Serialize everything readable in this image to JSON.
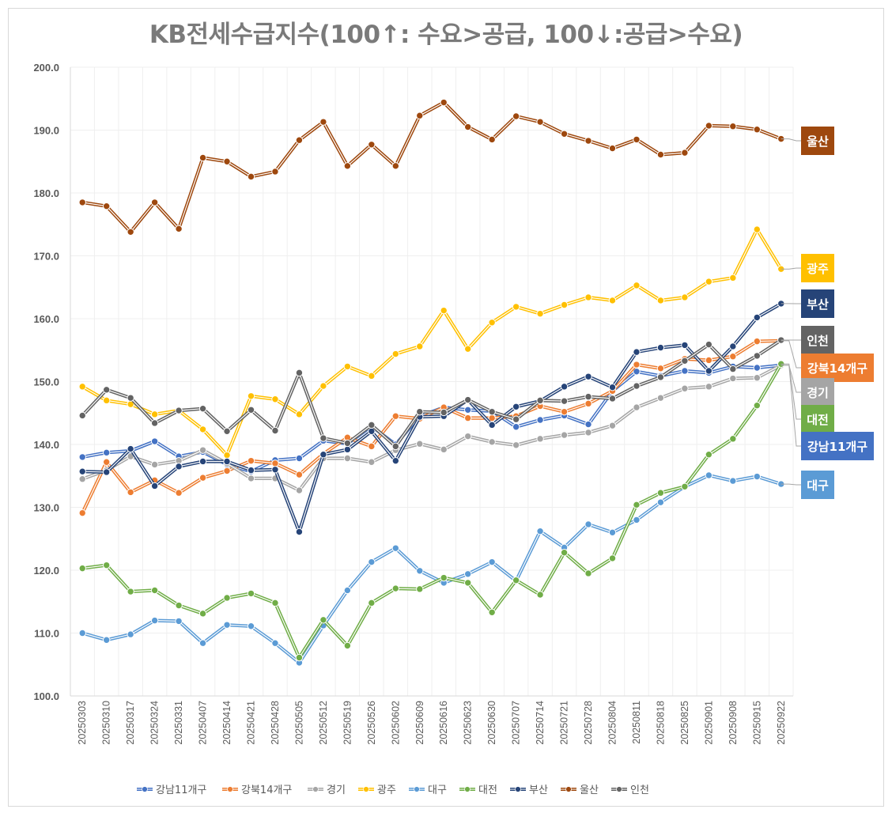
{
  "chart_data": {
    "type": "line",
    "title": "KB전세수급지수(100↑: 수요>공급, 100↓:공급>수요)",
    "xlabel": "",
    "ylabel": "",
    "ylim": [
      100,
      200
    ],
    "yticks": [
      "100.0",
      "110.0",
      "120.0",
      "130.0",
      "140.0",
      "150.0",
      "160.0",
      "170.0",
      "180.0",
      "190.0",
      "200.0"
    ],
    "grid": true,
    "legend_position": "bottom",
    "x": [
      "20250303",
      "20250310",
      "20250317",
      "20250324",
      "20250331",
      "20250407",
      "20250414",
      "20250421",
      "20250428",
      "20250505",
      "20250512",
      "20250519",
      "20250526",
      "20250602",
      "20250609",
      "20250616",
      "20250623",
      "20250630",
      "20250707",
      "20250714",
      "20250721",
      "20250728",
      "20250804",
      "20250811",
      "20250818",
      "20250825",
      "20250901",
      "20250908",
      "20250915",
      "20250922"
    ],
    "series": [
      {
        "name": "강남11개구",
        "color": "#4472C4",
        "values": [
          138.0,
          138.7,
          139.0,
          140.5,
          138.1,
          138.8,
          136.8,
          135.7,
          137.5,
          137.8,
          140.6,
          140.1,
          142.9,
          140.0,
          144.5,
          145.9,
          145.5,
          145.3,
          142.8,
          143.9,
          144.6,
          143.2,
          148.5,
          151.6,
          150.9,
          151.7,
          151.4,
          152.4,
          152.2,
          152.6
        ]
      },
      {
        "name": "강북14개구",
        "color": "#ED7D31",
        "values": [
          129.1,
          137.2,
          132.4,
          134.3,
          132.3,
          134.7,
          135.8,
          137.4,
          137.0,
          135.2,
          138.5,
          141.1,
          139.7,
          144.5,
          144.1,
          145.9,
          144.2,
          144.2,
          144.5,
          146.1,
          145.2,
          146.5,
          148.5,
          152.7,
          152.1,
          153.6,
          153.4,
          154.0,
          156.4,
          156.5
        ]
      },
      {
        "name": "경기",
        "color": "#A5A5A5",
        "values": [
          134.5,
          135.9,
          138.1,
          136.8,
          137.4,
          139.1,
          137.0,
          134.6,
          134.6,
          132.7,
          137.8,
          137.8,
          137.2,
          139.1,
          140.1,
          139.2,
          141.3,
          140.4,
          139.9,
          140.9,
          141.5,
          141.9,
          143.0,
          145.9,
          147.4,
          148.9,
          149.2,
          150.5,
          150.6,
          152.6
        ]
      },
      {
        "name": "광주",
        "color": "#FFC000",
        "values": [
          149.2,
          147.0,
          146.4,
          144.8,
          145.4,
          142.4,
          138.3,
          147.7,
          147.2,
          144.8,
          149.3,
          152.4,
          150.9,
          154.4,
          155.6,
          161.3,
          155.2,
          159.4,
          161.9,
          160.8,
          162.2,
          163.4,
          162.9,
          165.3,
          162.9,
          163.4,
          165.9,
          166.5,
          174.2,
          167.9
        ]
      },
      {
        "name": "대구",
        "color": "#5B9BD5",
        "values": [
          110.0,
          108.9,
          109.8,
          112.0,
          111.9,
          108.4,
          111.3,
          111.1,
          108.4,
          105.3,
          111.2,
          116.8,
          121.3,
          123.5,
          119.9,
          118.0,
          119.4,
          121.3,
          118.3,
          126.2,
          123.6,
          127.3,
          126.0,
          128.0,
          130.8,
          133.3,
          135.1,
          134.2,
          134.9,
          133.7
        ]
      },
      {
        "name": "대전",
        "color": "#70AD47",
        "values": [
          120.3,
          120.8,
          116.6,
          116.8,
          114.4,
          113.1,
          115.6,
          116.3,
          114.8,
          106.1,
          112.1,
          108.0,
          114.8,
          117.1,
          117.0,
          118.8,
          118.0,
          113.3,
          118.4,
          116.1,
          122.8,
          119.5,
          121.9,
          130.4,
          132.3,
          133.3,
          138.4,
          140.9,
          146.2,
          152.8
        ]
      },
      {
        "name": "부산",
        "color": "#264478",
        "values": [
          135.7,
          135.6,
          139.3,
          133.4,
          136.5,
          137.3,
          137.3,
          135.9,
          136.0,
          126.1,
          138.4,
          139.2,
          142.1,
          137.4,
          144.4,
          144.5,
          147.1,
          143.1,
          146.0,
          146.9,
          149.2,
          150.8,
          149.1,
          154.7,
          155.4,
          155.8,
          151.7,
          155.6,
          160.2,
          162.4
        ]
      },
      {
        "name": "울산",
        "color": "#9E480E",
        "values": [
          178.5,
          177.9,
          173.8,
          178.5,
          174.3,
          185.6,
          185.0,
          182.6,
          183.4,
          188.4,
          191.3,
          184.3,
          187.7,
          184.3,
          192.3,
          194.4,
          190.5,
          188.5,
          192.2,
          191.3,
          189.4,
          188.3,
          187.1,
          188.5,
          186.1,
          186.4,
          190.7,
          190.6,
          190.1,
          188.6
        ]
      },
      {
        "name": "인천",
        "color": "#636363",
        "values": [
          144.6,
          148.7,
          147.4,
          143.4,
          145.4,
          145.7,
          142.1,
          145.5,
          142.2,
          151.4,
          141.0,
          140.2,
          143.1,
          139.7,
          145.2,
          145.1,
          147.1,
          145.2,
          144.0,
          147.0,
          146.9,
          147.6,
          147.3,
          149.3,
          150.7,
          153.3,
          155.9,
          152.0,
          154.1,
          156.6
        ]
      }
    ],
    "end_labels": [
      {
        "series": "울산",
        "text": "울산"
      },
      {
        "series": "광주",
        "text": "광주"
      },
      {
        "series": "부산",
        "text": "부산"
      },
      {
        "series": "인천",
        "text": "인천"
      },
      {
        "series": "강북14개구",
        "text": "강북14개구"
      },
      {
        "series": "경기",
        "text": "경기"
      },
      {
        "series": "대전",
        "text": "대전"
      },
      {
        "series": "강남11개구",
        "text": "강남11개구"
      },
      {
        "series": "대구",
        "text": "대구"
      }
    ]
  }
}
